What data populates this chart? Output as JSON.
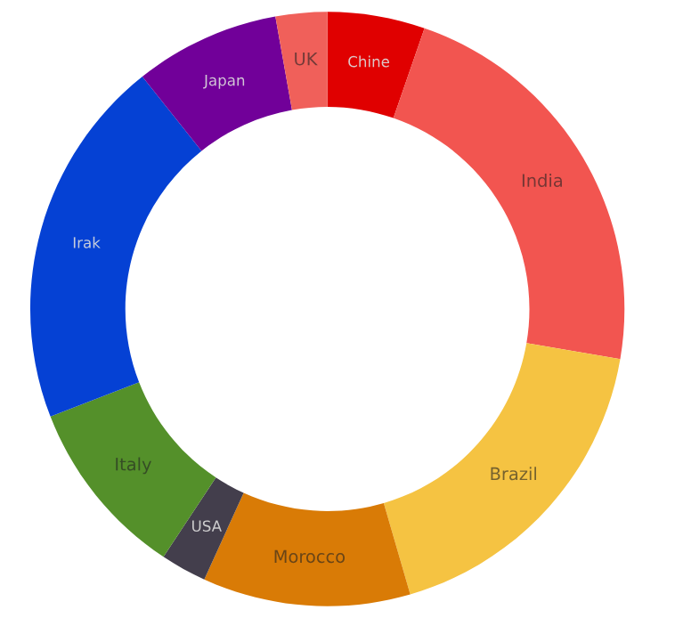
{
  "chart_data": {
    "type": "donut",
    "categories": [
      "Chine",
      "India",
      "Brazil",
      "Morocco",
      "USA",
      "Italy",
      "Irak",
      "Japan",
      "UK"
    ],
    "values": [
      5.3,
      22.4,
      17.8,
      11.3,
      2.5,
      9.8,
      20.2,
      7.9,
      2.8
    ],
    "colors": [
      "#e00000",
      "#f25550",
      "#f5c342",
      "#d97b06",
      "#433e4c",
      "#54902a",
      "#0541d4",
      "#710099",
      "#f0605a"
    ]
  }
}
